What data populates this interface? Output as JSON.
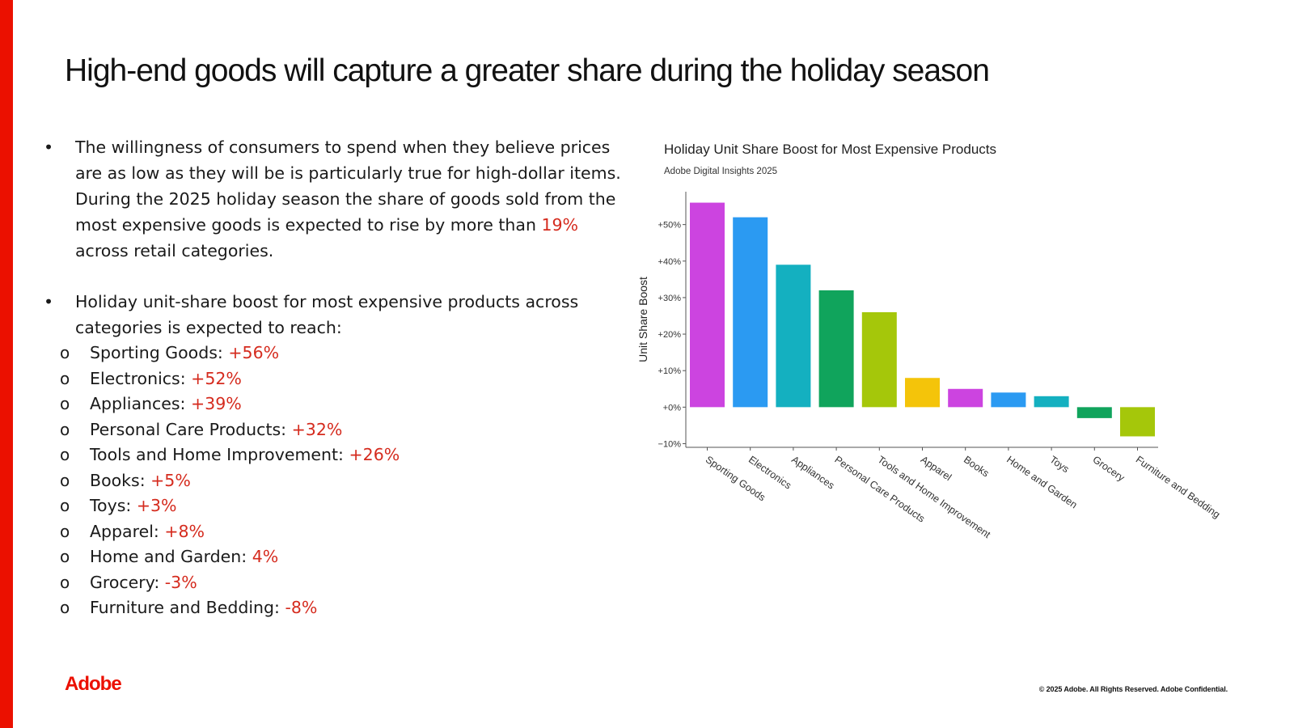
{
  "slide": {
    "title": "High-end goods will capture a greater share during the holiday season",
    "bullet1": {
      "text_before": "The willingness of consumers to spend when they believe prices are as low as they will be is particularly true for high-dollar items. During the 2025 holiday season the share of goods sold from the most expensive goods is expected to rise by more than ",
      "highlight": "19%",
      "text_after": " across retail categories."
    },
    "bullet2": {
      "text": "Holiday unit-share boost for most expensive products across categories is expected to reach:",
      "items": [
        {
          "label": "Sporting Goods: ",
          "value": "+56%"
        },
        {
          "label": "Electronics: ",
          "value": "+52%"
        },
        {
          "label": "Appliances: ",
          "value": "+39%"
        },
        {
          "label": "Personal Care Products: ",
          "value": "+32%"
        },
        {
          "label": "Tools and Home Improvement: ",
          "value": "+26%"
        },
        {
          "label": "Books: ",
          "value": "+5%"
        },
        {
          "label": "Toys: ",
          "value": "+3%"
        },
        {
          "label": "Apparel: ",
          "value": "+8%"
        },
        {
          "label": "Home and Garden: ",
          "value": "4%"
        },
        {
          "label": "Grocery: ",
          "value": "-3%"
        },
        {
          "label": "Furniture and Bedding: ",
          "value": "-8%"
        }
      ]
    },
    "bullet_glyph": "•",
    "sub_glyph": "o",
    "logo": "Adobe",
    "copyright": "© 2025 Adobe. All Rights Reserved. Adobe Confidential.",
    "accent_color": "#eb1000",
    "highlight_color": "#d52b1e"
  },
  "chart_data": {
    "type": "bar",
    "title": "Holiday Unit Share Boost for Most Expensive Products",
    "subtitle": "Adobe Digital Insights 2025",
    "ylabel": "Unit Share Boost",
    "xlabel": "",
    "ylim": [
      -11,
      59
    ],
    "yticks": [
      -10,
      0,
      10,
      20,
      30,
      40,
      50
    ],
    "ytick_labels": [
      "−10%",
      "+0%",
      "+10%",
      "+20%",
      "+30%",
      "+40%",
      "+50%"
    ],
    "categories": [
      "Sporting Goods",
      "Electronics",
      "Appliances",
      "Personal Care Products",
      "Tools and Home Improvement",
      "Apparel",
      "Books",
      "Home and Garden",
      "Toys",
      "Grocery",
      "Furniture and Bedding"
    ],
    "values": [
      56,
      52,
      39,
      32,
      26,
      8,
      5,
      4,
      3,
      -3,
      -8
    ],
    "colors": [
      "#cc44e0",
      "#2b9af2",
      "#14b0c0",
      "#10a45c",
      "#a5c70a",
      "#f4c40a",
      "#cc44e0",
      "#2b9af2",
      "#14b0c0",
      "#10a45c",
      "#a5c70a"
    ],
    "grid": false,
    "legend": "none"
  }
}
